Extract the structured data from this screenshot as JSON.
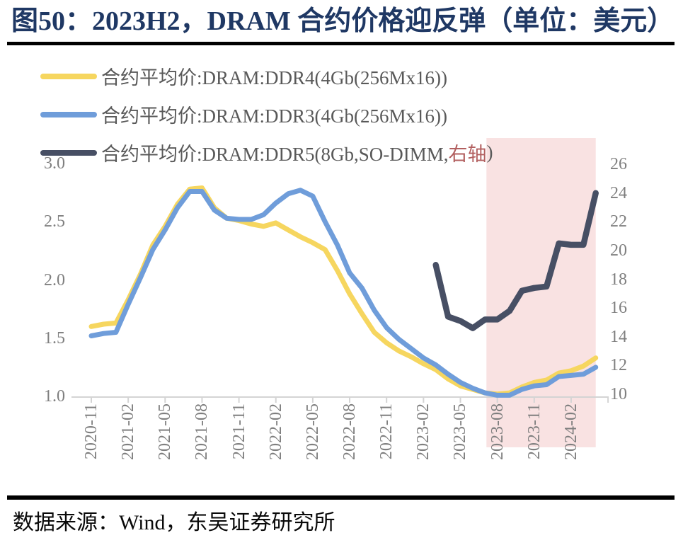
{
  "header": {
    "title": "图50：2023H2，DRAM 合约价格迎反弹（单位：美元）"
  },
  "footer": {
    "source": "数据来源：Wind，东吴证券研究所"
  },
  "colors": {
    "title": "#1f3864",
    "legend_text": "#595959",
    "axis_text": "#7f7f7f",
    "axis_line": "#d4d4d4",
    "highlight_band": "#f9e2e2",
    "ddr4_yellow": "#f6d65f",
    "ddr3_blue": "#6f9dda",
    "ddr5_dark": "#474f64",
    "right_axis_note_red": "#b25f5f",
    "rule_black": "#000000"
  },
  "chart_data": {
    "type": "line",
    "months": [
      "2020-11",
      "2020-12",
      "2021-01",
      "2021-02",
      "2021-03",
      "2021-04",
      "2021-05",
      "2021-06",
      "2021-07",
      "2021-08",
      "2021-09",
      "2021-10",
      "2021-11",
      "2021-12",
      "2022-01",
      "2022-02",
      "2022-03",
      "2022-04",
      "2022-05",
      "2022-06",
      "2022-07",
      "2022-08",
      "2022-09",
      "2022-10",
      "2022-11",
      "2022-12",
      "2023-01",
      "2023-02",
      "2023-03",
      "2023-04",
      "2023-05",
      "2023-06",
      "2023-07",
      "2023-08",
      "2023-09",
      "2023-10",
      "2023-11",
      "2023-12",
      "2024-01",
      "2024-02",
      "2024-03",
      "2024-04"
    ],
    "x_tick_labels": [
      "2020-11",
      "2021-02",
      "2021-05",
      "2021-08",
      "2021-11",
      "2022-02",
      "2022-05",
      "2022-08",
      "2022-11",
      "2023-02",
      "2023-05",
      "2023-08",
      "2023-11",
      "2024-02"
    ],
    "left_axis": {
      "min": 1.0,
      "max": 3.0,
      "tick_labels": [
        "1.0",
        "1.5",
        "2.0",
        "2.5",
        "3.0"
      ]
    },
    "right_axis": {
      "min": 10,
      "max": 26,
      "tick_labels": [
        "10",
        "12",
        "14",
        "16",
        "18",
        "20",
        "22",
        "24",
        "26"
      ]
    },
    "highlight_region": {
      "from": "2023-07",
      "to": "2024-04"
    },
    "grid": "off",
    "legend_position": "top-left",
    "series": [
      {
        "name": "合约平均价:DRAM:DDR4(4Gb(256Mx16))",
        "axis": "left",
        "color": "#f6d65f",
        "start_month": "2020-11",
        "values": [
          1.6,
          1.62,
          1.63,
          1.83,
          2.05,
          2.3,
          2.46,
          2.65,
          2.78,
          2.79,
          2.62,
          2.53,
          2.51,
          2.48,
          2.46,
          2.49,
          2.43,
          2.37,
          2.32,
          2.26,
          2.08,
          1.88,
          1.71,
          1.55,
          1.46,
          1.39,
          1.34,
          1.28,
          1.23,
          1.15,
          1.09,
          1.06,
          1.03,
          1.02,
          1.03,
          1.08,
          1.12,
          1.14,
          1.2,
          1.22,
          1.26,
          1.33
        ]
      },
      {
        "name": "合约平均价:DRAM:DDR3(4Gb(256Mx16))",
        "axis": "left",
        "color": "#6f9dda",
        "start_month": "2020-11",
        "values": [
          1.52,
          1.54,
          1.55,
          1.79,
          2.02,
          2.26,
          2.43,
          2.62,
          2.76,
          2.76,
          2.6,
          2.53,
          2.52,
          2.52,
          2.56,
          2.66,
          2.74,
          2.77,
          2.72,
          2.5,
          2.3,
          2.06,
          1.93,
          1.74,
          1.59,
          1.49,
          1.41,
          1.33,
          1.27,
          1.19,
          1.12,
          1.07,
          1.03,
          1.01,
          1.01,
          1.06,
          1.09,
          1.1,
          1.17,
          1.18,
          1.19,
          1.25
        ]
      },
      {
        "name": "合约平均价:DRAM:DDR5(8Gb,SO-DIMM,右轴)",
        "name_parts": {
          "prefix": "合约平均价:DRAM:DDR5(8Gb,SO-DIMM,",
          "highlight": "右轴",
          "suffix": ")"
        },
        "axis": "right",
        "color": "#474f64",
        "start_month": "2023-03",
        "values": [
          19.0,
          15.4,
          15.1,
          14.6,
          15.2,
          15.2,
          15.8,
          17.2,
          17.4,
          17.5,
          20.5,
          20.4,
          20.4,
          24.0
        ]
      }
    ]
  }
}
